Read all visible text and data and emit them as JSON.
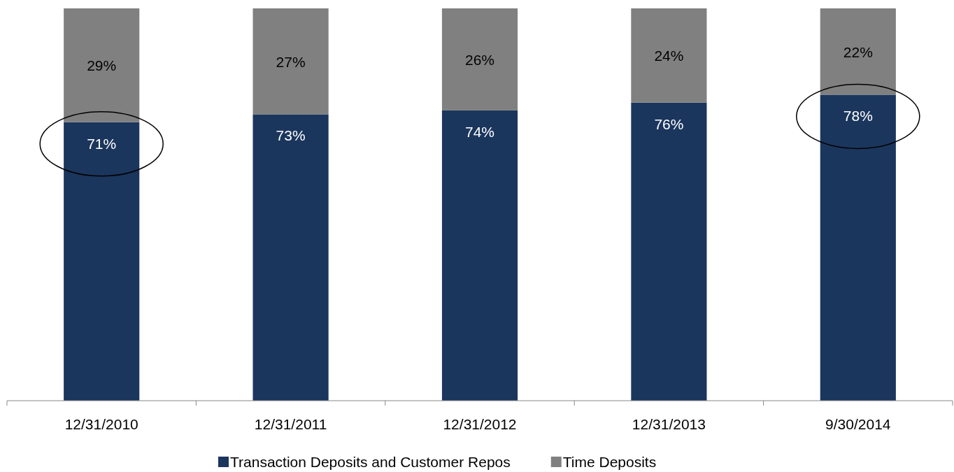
{
  "chart_data": {
    "type": "bar",
    "stacked": true,
    "categories": [
      "12/31/2010",
      "12/31/2011",
      "12/31/2012",
      "12/31/2013",
      "9/30/2014"
    ],
    "series": [
      {
        "name": "Transaction Deposits and Customer Repos",
        "color": "#1b365d",
        "values": [
          71,
          73,
          74,
          76,
          78
        ],
        "value_labels": [
          "71%",
          "73%",
          "74%",
          "76%",
          "78%"
        ]
      },
      {
        "name": "Time Deposits",
        "color": "#808080",
        "values": [
          29,
          27,
          26,
          24,
          22
        ],
        "value_labels": [
          "29%",
          "27%",
          "26%",
          "24%",
          "22%"
        ]
      }
    ],
    "legend": "bottom"
  }
}
